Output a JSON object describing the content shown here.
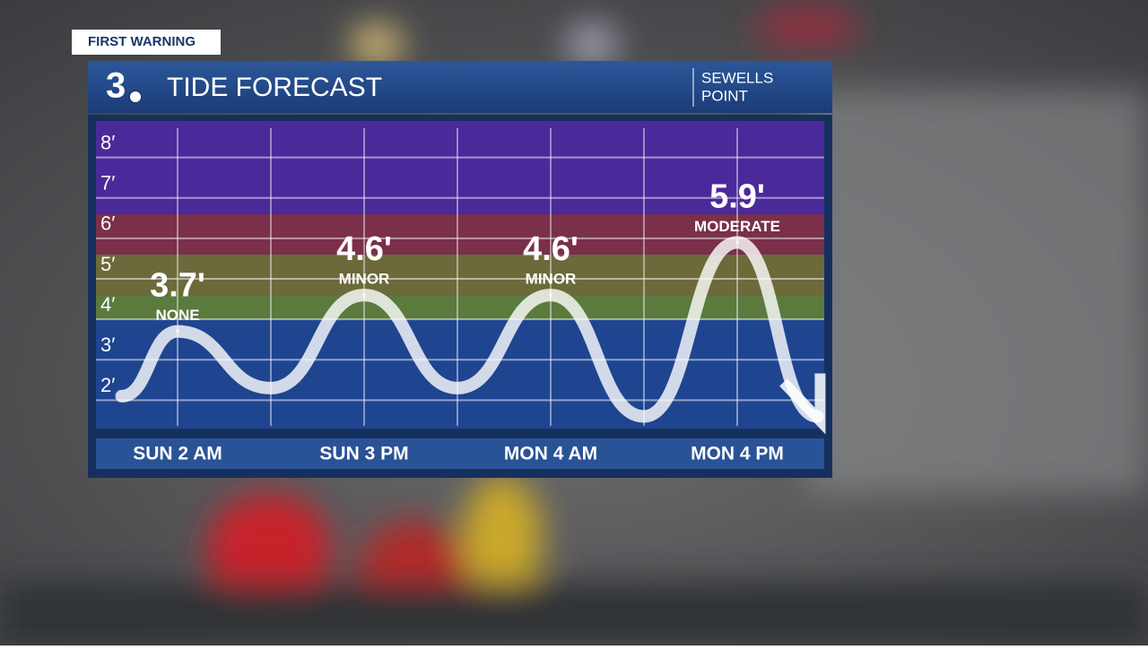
{
  "header": {
    "badge": "FIRST WARNING",
    "logo": "3",
    "title": "TIDE FORECAST",
    "location": [
      "SEWELLS",
      "POINT"
    ]
  },
  "chart_data": {
    "type": "line",
    "categories": [
      "SUN 2 AM",
      "SUN 3 PM",
      "MON 4 AM",
      "MON 4 PM"
    ],
    "values": [
      3.7,
      4.6,
      4.6,
      5.9
    ],
    "value_labels": [
      "3.7'",
      "4.6'",
      "4.6'",
      "5.9'"
    ],
    "flood_levels": [
      "NONE",
      "MINOR",
      "MINOR",
      "MODERATE"
    ],
    "curve": {
      "x": [
        -0.3,
        0,
        0.5,
        1,
        1.5,
        2,
        2.5,
        3,
        3.43
      ],
      "values": [
        2.1,
        3.7,
        2.3,
        4.6,
        2.3,
        4.6,
        1.6,
        5.9,
        1.6
      ]
    },
    "bands": [
      {
        "from": 1.3,
        "to": 4.0,
        "color": "#1f4590"
      },
      {
        "from": 4.0,
        "to": 4.6,
        "color": "#5a7a3e"
      },
      {
        "from": 4.6,
        "to": 5.6,
        "color": "#6c6a3a"
      },
      {
        "from": 5.6,
        "to": 6.6,
        "color": "#7a2f4a"
      },
      {
        "from": 6.6,
        "to": 8.9,
        "color": "#4a2a9a"
      }
    ],
    "ylim": [
      1.3,
      8.9
    ],
    "yticks": [
      {
        "value": 2,
        "label": "2′"
      },
      {
        "value": 3,
        "label": "3′"
      },
      {
        "value": 4,
        "label": "4′"
      },
      {
        "value": 5,
        "label": "5′"
      },
      {
        "value": 6,
        "label": "6′"
      },
      {
        "value": 7,
        "label": "7′"
      },
      {
        "value": 8,
        "label": "8′"
      }
    ],
    "grid": true,
    "line_color": "#ffffff"
  }
}
